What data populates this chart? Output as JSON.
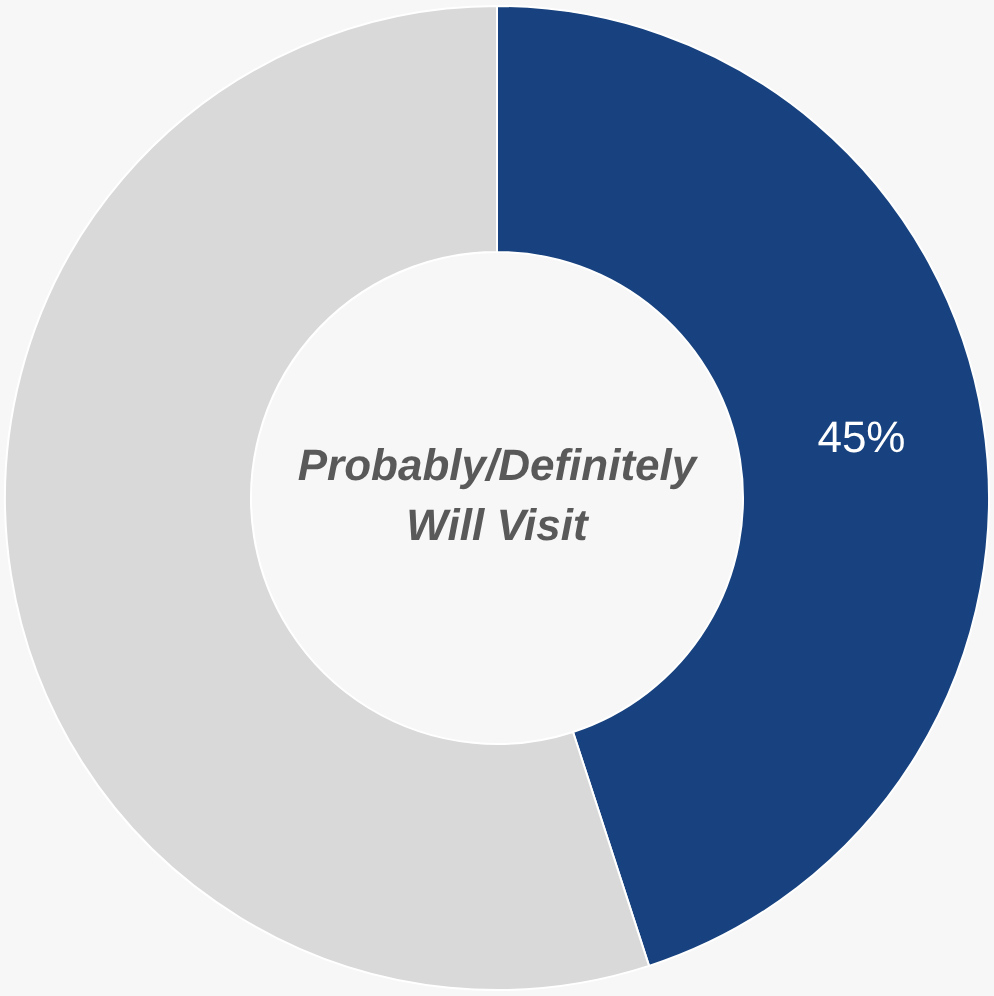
{
  "chart_data": {
    "type": "donut",
    "categories": [
      null,
      null
    ],
    "values": [
      45,
      55
    ],
    "colors": [
      "#17427f",
      "#d9d9d9"
    ],
    "value_labels": [
      "45%",
      null
    ],
    "annotations": [
      "Probably/Definitely\nWill Visit"
    ],
    "legend": false
  }
}
